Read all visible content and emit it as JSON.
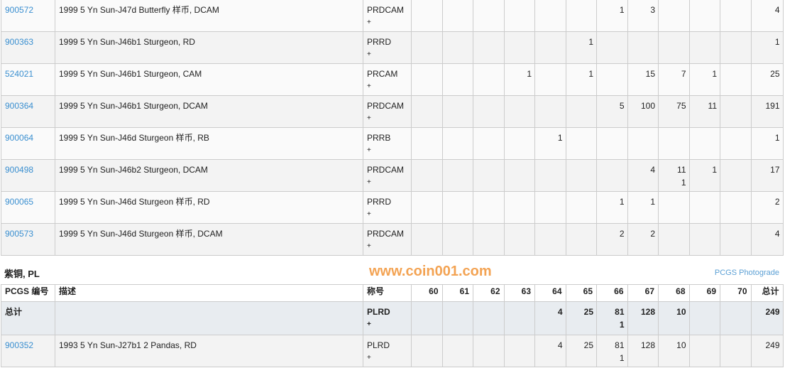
{
  "grades": [
    "60",
    "61",
    "62",
    "63",
    "64",
    "65",
    "66",
    "67",
    "68",
    "69",
    "70"
  ],
  "rows": [
    {
      "id": "900572",
      "desc": "1999 5 Yn Sun-J47d Butterfly 样币, DCAM",
      "des": "PRDCAM",
      "plus": "+",
      "vals": [
        "",
        "",
        "",
        "",
        "",
        "",
        "1",
        "3",
        "",
        "",
        ""
      ],
      "total": "4"
    },
    {
      "id": "900363",
      "desc": "1999 5 Yn Sun-J46b1 Sturgeon, RD",
      "des": "PRRD",
      "plus": "+",
      "vals": [
        "",
        "",
        "",
        "",
        "",
        "1",
        "",
        "",
        "",
        "",
        ""
      ],
      "total": "1"
    },
    {
      "id": "524021",
      "desc": "1999 5 Yn Sun-J46b1 Sturgeon, CAM",
      "des": "PRCAM",
      "plus": "+",
      "vals": [
        "",
        "",
        "",
        "1",
        "",
        "1",
        "",
        "15",
        "7",
        "1",
        ""
      ],
      "total": "25"
    },
    {
      "id": "900364",
      "desc": "1999 5 Yn Sun-J46b1 Sturgeon, DCAM",
      "des": "PRDCAM",
      "plus": "+",
      "vals": [
        "",
        "",
        "",
        "",
        "",
        "",
        "5",
        "100",
        "75",
        "11",
        ""
      ],
      "total": "191"
    },
    {
      "id": "900064",
      "desc": "1999 5 Yn Sun-J46d Sturgeon 样币, RB",
      "des": "PRRB",
      "plus": "+",
      "vals": [
        "",
        "",
        "",
        "",
        "1",
        "",
        "",
        "",
        "",
        "",
        ""
      ],
      "total": "1"
    },
    {
      "id": "900498",
      "desc": "1999 5 Yn Sun-J46b2 Sturgeon, DCAM",
      "des": "PRDCAM",
      "plus": "+",
      "vals": [
        "",
        "",
        "",
        "",
        "",
        "",
        "",
        "4",
        "11\n1",
        "1",
        ""
      ],
      "total": "17"
    },
    {
      "id": "900065",
      "desc": "1999 5 Yn Sun-J46d Sturgeon 样币, RD",
      "des": "PRRD",
      "plus": "+",
      "vals": [
        "",
        "",
        "",
        "",
        "",
        "",
        "1",
        "1",
        "",
        "",
        ""
      ],
      "total": "2"
    },
    {
      "id": "900573",
      "desc": "1999 5 Yn Sun-J46d Sturgeon 样币, DCAM",
      "des": "PRDCAM",
      "plus": "+",
      "vals": [
        "",
        "",
        "",
        "",
        "",
        "",
        "2",
        "2",
        "",
        "",
        ""
      ],
      "total": "4"
    }
  ],
  "section": {
    "title": "紫铜, PL",
    "photograde": "PCGS Photograde",
    "headers": {
      "id": "PCGS 编号",
      "desc": "描述",
      "des": "称号",
      "total": "总计"
    },
    "total_row": {
      "label": "总计",
      "des": "PLRD",
      "plus": "+",
      "vals": [
        "",
        "",
        "",
        "",
        "4",
        "25",
        "81\n1",
        "128",
        "10",
        "",
        ""
      ],
      "total": "249"
    },
    "rows": [
      {
        "id": "900352",
        "desc": "1993 5 Yn Sun-J27b1 2 Pandas, RD",
        "des": "PLRD",
        "plus": "+",
        "vals": [
          "",
          "",
          "",
          "",
          "4",
          "25",
          "81\n1",
          "128",
          "10",
          "",
          ""
        ],
        "total": "249"
      }
    ]
  },
  "watermark": "www.coin001.com"
}
